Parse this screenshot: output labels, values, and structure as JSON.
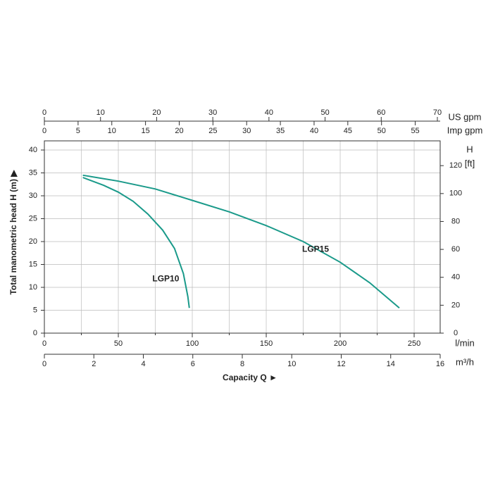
{
  "chart_data": {
    "type": "line",
    "xlabel": "Capacity Q ►",
    "ylabel": "Total manometric head H (m) ▶",
    "x_axes": [
      {
        "label": "US gpm",
        "xlim": [
          0,
          70.5
        ],
        "xticks": [
          0,
          10,
          20,
          30,
          40,
          50,
          60,
          70
        ]
      },
      {
        "label": "Imp gpm",
        "xlim": [
          0,
          58.7
        ],
        "xticks": [
          0,
          5,
          10,
          15,
          20,
          25,
          30,
          35,
          40,
          45,
          50,
          55
        ]
      },
      {
        "label": "l/min",
        "xlim": [
          0,
          267.6
        ],
        "xticks": [
          0,
          50,
          100,
          150,
          200,
          250
        ],
        "xminorticks": [
          25,
          75,
          125,
          175,
          225
        ]
      },
      {
        "label": "m³/h",
        "xlim": [
          0,
          16
        ],
        "xticks": [
          0,
          2,
          4,
          6,
          8,
          10,
          12,
          14,
          16
        ]
      }
    ],
    "ylim": [
      0,
      40
    ],
    "yticks": [
      0,
      5,
      10,
      15,
      20,
      25,
      30,
      35,
      40
    ],
    "y2title": "H",
    "y2label": "[ft]",
    "y2lim": [
      0,
      131.2
    ],
    "y2ticks": [
      0,
      20,
      40,
      60,
      80,
      100,
      120
    ],
    "grid": true,
    "series": [
      {
        "name": "LGP10",
        "color": "#1a9a8a",
        "x": [
          26,
          40,
          50,
          60,
          70,
          80,
          88,
          94,
          97,
          98
        ],
        "values": [
          34,
          32.3,
          30.8,
          28.8,
          26,
          22.5,
          18.5,
          13,
          8,
          5.5
        ]
      },
      {
        "name": "LGP15",
        "color": "#1a9a8a",
        "x": [
          26,
          50,
          75,
          100,
          125,
          150,
          175,
          200,
          220,
          240
        ],
        "values": [
          34.5,
          33.2,
          31.5,
          29,
          26.5,
          23.5,
          20,
          15.5,
          11,
          5.5
        ]
      }
    ]
  }
}
